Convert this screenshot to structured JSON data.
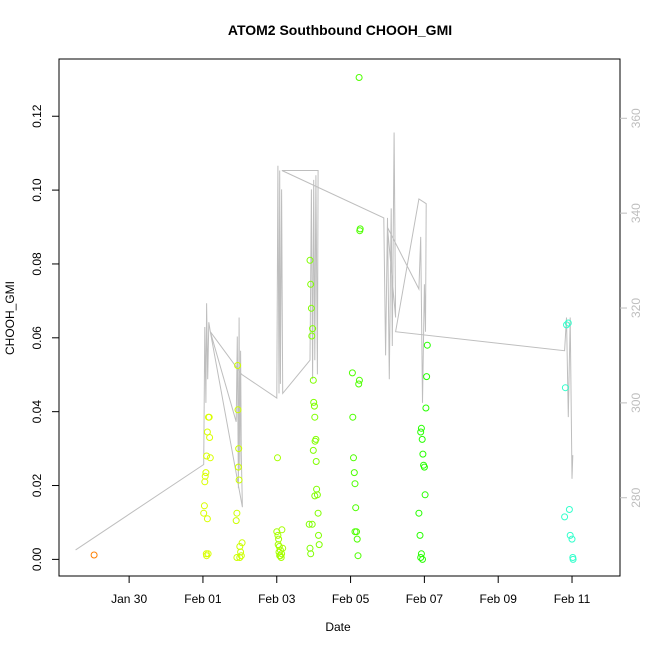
{
  "chart_data": {
    "type": "scatter",
    "title": "ATOM2 Southbound CHOOH_GMI",
    "xlabel": "Date",
    "ylabel": "CHOOH_GMI",
    "x_unit": "days (Jan 30 = 30, Feb 01 = 32, ...)",
    "xlim": [
      28.1,
      43.3
    ],
    "ylim": [
      -0.0045,
      0.1355
    ],
    "x_ticks": [
      {
        "value": 30,
        "label": "Jan 30"
      },
      {
        "value": 32,
        "label": "Feb 01"
      },
      {
        "value": 34,
        "label": "Feb 03"
      },
      {
        "value": 36,
        "label": "Feb 05"
      },
      {
        "value": 38,
        "label": "Feb 07"
      },
      {
        "value": 40,
        "label": "Feb 09"
      },
      {
        "value": 42,
        "label": "Feb 11"
      }
    ],
    "y_ticks": [
      {
        "value": 0.0,
        "label": "0.00"
      },
      {
        "value": 0.02,
        "label": "0.02"
      },
      {
        "value": 0.04,
        "label": "0.04"
      },
      {
        "value": 0.06,
        "label": "0.06"
      },
      {
        "value": 0.08,
        "label": "0.08"
      },
      {
        "value": 0.1,
        "label": "0.10"
      },
      {
        "value": 0.12,
        "label": "0.12"
      }
    ],
    "right_axis": {
      "color": "#bebebe",
      "ylim": [
        263.5,
        372.5
      ],
      "ticks": [
        {
          "value": 280,
          "label": "280"
        },
        {
          "value": 300,
          "label": "300"
        },
        {
          "value": 320,
          "label": "320"
        },
        {
          "value": 340,
          "label": "340"
        },
        {
          "value": 360,
          "label": "360"
        }
      ],
      "line_color": "#bebebe",
      "line": [
        [
          28.55,
          269.0
        ],
        [
          32.02,
          287.0
        ],
        [
          32.05,
          316.0
        ],
        [
          32.08,
          300.0
        ],
        [
          32.1,
          321.0
        ],
        [
          32.13,
          305.0
        ],
        [
          32.16,
          317.0
        ],
        [
          32.2,
          315.0
        ],
        [
          32.9,
          296.0
        ],
        [
          32.93,
          314.0
        ],
        [
          32.96,
          282.0
        ],
        [
          32.98,
          318.0
        ],
        [
          33.0,
          286.0
        ],
        [
          33.02,
          311.0
        ],
        [
          33.04,
          289.0
        ],
        [
          33.07,
          278.0
        ],
        [
          32.2,
          315.0
        ],
        [
          33.05,
          306.0
        ],
        [
          34.0,
          301.0
        ],
        [
          34.03,
          350.0
        ],
        [
          34.06,
          302.0
        ],
        [
          34.08,
          349.0
        ],
        [
          34.1,
          304.0
        ],
        [
          34.13,
          345.0
        ],
        [
          34.16,
          302.0
        ],
        [
          34.9,
          309.0
        ],
        [
          34.94,
          345.0
        ],
        [
          34.97,
          305.0
        ],
        [
          35.0,
          347.0
        ],
        [
          35.03,
          309.0
        ],
        [
          35.06,
          348.0
        ],
        [
          35.1,
          306.0
        ],
        [
          35.12,
          349.0
        ],
        [
          34.14,
          349.0
        ],
        [
          36.9,
          339.0
        ],
        [
          36.95,
          310.0
        ],
        [
          37.0,
          339.0
        ],
        [
          37.05,
          305.0
        ],
        [
          37.1,
          341.0
        ],
        [
          37.13,
          312.0
        ],
        [
          37.18,
          357.0
        ],
        [
          37.22,
          318.0
        ],
        [
          37.0,
          337.0
        ],
        [
          37.85,
          324.0
        ],
        [
          37.9,
          335.0
        ],
        [
          37.95,
          300.0
        ],
        [
          38.0,
          325.0
        ],
        [
          38.03,
          315.0
        ],
        [
          38.05,
          342.0
        ],
        [
          37.85,
          343.0
        ],
        [
          37.22,
          315.0
        ],
        [
          41.8,
          311.0
        ],
        [
          41.85,
          318.0
        ],
        [
          41.9,
          297.0
        ],
        [
          41.95,
          318.0
        ],
        [
          42.0,
          284.0
        ],
        [
          42.02,
          289.0
        ]
      ]
    },
    "series": [
      {
        "points": [
          [
            29.05,
            0.0012,
            "#ff7f00"
          ],
          [
            32.02,
            0.0125,
            "#d9ff00"
          ],
          [
            32.04,
            0.0145,
            "#d9ff00"
          ],
          [
            32.05,
            0.021,
            "#d9ff00"
          ],
          [
            32.06,
            0.0225,
            "#d9ff00"
          ],
          [
            32.08,
            0.0235,
            "#d9ff00"
          ],
          [
            32.1,
            0.028,
            "#d9ff00"
          ],
          [
            32.12,
            0.011,
            "#d9ff00"
          ],
          [
            32.14,
            0.0015,
            "#d9ff00"
          ],
          [
            32.15,
            0.0385,
            "#d9ff00"
          ],
          [
            32.17,
            0.0385,
            "#d9ff00"
          ],
          [
            32.18,
            0.033,
            "#d9ff00"
          ],
          [
            32.2,
            0.0275,
            "#d9ff00"
          ],
          [
            32.1,
            0.001,
            "#d9ff00"
          ],
          [
            32.12,
            0.0345,
            "#d9ff00"
          ],
          [
            32.09,
            0.0015,
            "#d9ff00"
          ],
          [
            32.9,
            0.0105,
            "#ccff00"
          ],
          [
            32.92,
            0.0125,
            "#ccff00"
          ],
          [
            32.94,
            0.0525,
            "#ccff00"
          ],
          [
            32.96,
            0.025,
            "#ccff00"
          ],
          [
            32.98,
            0.0215,
            "#ccff00"
          ],
          [
            33.0,
            0.0035,
            "#ccff00"
          ],
          [
            33.02,
            0.002,
            "#ccff00"
          ],
          [
            33.04,
            0.001,
            "#ccff00"
          ],
          [
            33.06,
            0.0045,
            "#ccff00"
          ],
          [
            32.92,
            0.0005,
            "#ccff00"
          ],
          [
            32.95,
            0.0405,
            "#ccff00"
          ],
          [
            32.97,
            0.03,
            "#ccff00"
          ],
          [
            33.0,
            0.0005,
            "#ccff00"
          ],
          [
            34.0,
            0.0075,
            "#a6ff00"
          ],
          [
            34.02,
            0.0275,
            "#a6ff00"
          ],
          [
            34.04,
            0.004,
            "#a6ff00"
          ],
          [
            34.05,
            0.0055,
            "#a6ff00"
          ],
          [
            34.06,
            0.002,
            "#a6ff00"
          ],
          [
            34.08,
            0.001,
            "#a6ff00"
          ],
          [
            34.1,
            0.0025,
            "#a6ff00"
          ],
          [
            34.12,
            0.0005,
            "#a6ff00"
          ],
          [
            34.14,
            0.008,
            "#a6ff00"
          ],
          [
            34.16,
            0.003,
            "#a6ff00"
          ],
          [
            34.03,
            0.0065,
            "#a6ff00"
          ],
          [
            34.07,
            0.0035,
            "#a6ff00"
          ],
          [
            34.1,
            0.001,
            "#a6ff00"
          ],
          [
            34.13,
            0.0015,
            "#a6ff00"
          ],
          [
            34.88,
            0.0095,
            "#80ff00"
          ],
          [
            34.9,
            0.081,
            "#80ff00"
          ],
          [
            34.92,
            0.0745,
            "#80ff00"
          ],
          [
            34.94,
            0.068,
            "#80ff00"
          ],
          [
            34.95,
            0.0605,
            "#80ff00"
          ],
          [
            34.97,
            0.0625,
            "#80ff00"
          ],
          [
            34.99,
            0.0485,
            "#80ff00"
          ],
          [
            35.0,
            0.0425,
            "#80ff00"
          ],
          [
            35.02,
            0.0415,
            "#80ff00"
          ],
          [
            35.03,
            0.0385,
            "#80ff00"
          ],
          [
            35.04,
            0.032,
            "#80ff00"
          ],
          [
            35.06,
            0.0325,
            "#80ff00"
          ],
          [
            35.07,
            0.0265,
            "#80ff00"
          ],
          [
            35.08,
            0.019,
            "#80ff00"
          ],
          [
            35.1,
            0.0175,
            "#80ff00"
          ],
          [
            35.12,
            0.0125,
            "#80ff00"
          ],
          [
            35.13,
            0.0065,
            "#80ff00"
          ],
          [
            35.15,
            0.004,
            "#80ff00"
          ],
          [
            34.92,
            0.0015,
            "#80ff00"
          ],
          [
            34.9,
            0.003,
            "#80ff00"
          ],
          [
            34.96,
            0.0095,
            "#80ff00"
          ],
          [
            34.99,
            0.0295,
            "#80ff00"
          ],
          [
            35.03,
            0.0172,
            "#80ff00"
          ],
          [
            36.05,
            0.0505,
            "#4dff00"
          ],
          [
            36.06,
            0.0385,
            "#4dff00"
          ],
          [
            36.08,
            0.0275,
            "#4dff00"
          ],
          [
            36.1,
            0.0235,
            "#4dff00"
          ],
          [
            36.12,
            0.0205,
            "#4dff00"
          ],
          [
            36.14,
            0.014,
            "#4dff00"
          ],
          [
            36.16,
            0.0075,
            "#4dff00"
          ],
          [
            36.18,
            0.0055,
            "#4dff00"
          ],
          [
            36.2,
            0.001,
            "#4dff00"
          ],
          [
            36.22,
            0.0475,
            "#4dff00"
          ],
          [
            36.24,
            0.0485,
            "#4dff00"
          ],
          [
            36.25,
            0.089,
            "#4dff00"
          ],
          [
            36.26,
            0.0895,
            "#4dff00"
          ],
          [
            36.23,
            0.1305,
            "#4dff00"
          ],
          [
            36.12,
            0.0075,
            "#4dff00"
          ],
          [
            37.85,
            0.0125,
            "#26ff00"
          ],
          [
            37.88,
            0.0065,
            "#26ff00"
          ],
          [
            37.9,
            0.0345,
            "#26ff00"
          ],
          [
            37.92,
            0.0355,
            "#26ff00"
          ],
          [
            37.94,
            0.0325,
            "#26ff00"
          ],
          [
            37.96,
            0.0285,
            "#26ff00"
          ],
          [
            37.98,
            0.0255,
            "#26ff00"
          ],
          [
            38.0,
            0.025,
            "#26ff00"
          ],
          [
            38.02,
            0.0175,
            "#26ff00"
          ],
          [
            38.04,
            0.041,
            "#26ff00"
          ],
          [
            38.06,
            0.0495,
            "#26ff00"
          ],
          [
            38.08,
            0.058,
            "#26ff00"
          ],
          [
            37.9,
            0.0005,
            "#26ff00"
          ],
          [
            37.92,
            0.0015,
            "#26ff00"
          ],
          [
            37.95,
            0.0,
            "#26ff00"
          ],
          [
            41.8,
            0.0115,
            "#33ffcc"
          ],
          [
            41.82,
            0.0465,
            "#33ffcc"
          ],
          [
            41.85,
            0.0635,
            "#33ffcc"
          ],
          [
            41.9,
            0.064,
            "#33ffcc"
          ],
          [
            41.93,
            0.0135,
            "#33ffcc"
          ],
          [
            41.95,
            0.0065,
            "#33ffcc"
          ],
          [
            42.0,
            0.0055,
            "#33ffcc"
          ],
          [
            42.02,
            0.0005,
            "#33ffcc"
          ],
          [
            42.03,
            0.0,
            "#33ffcc"
          ]
        ]
      }
    ]
  }
}
